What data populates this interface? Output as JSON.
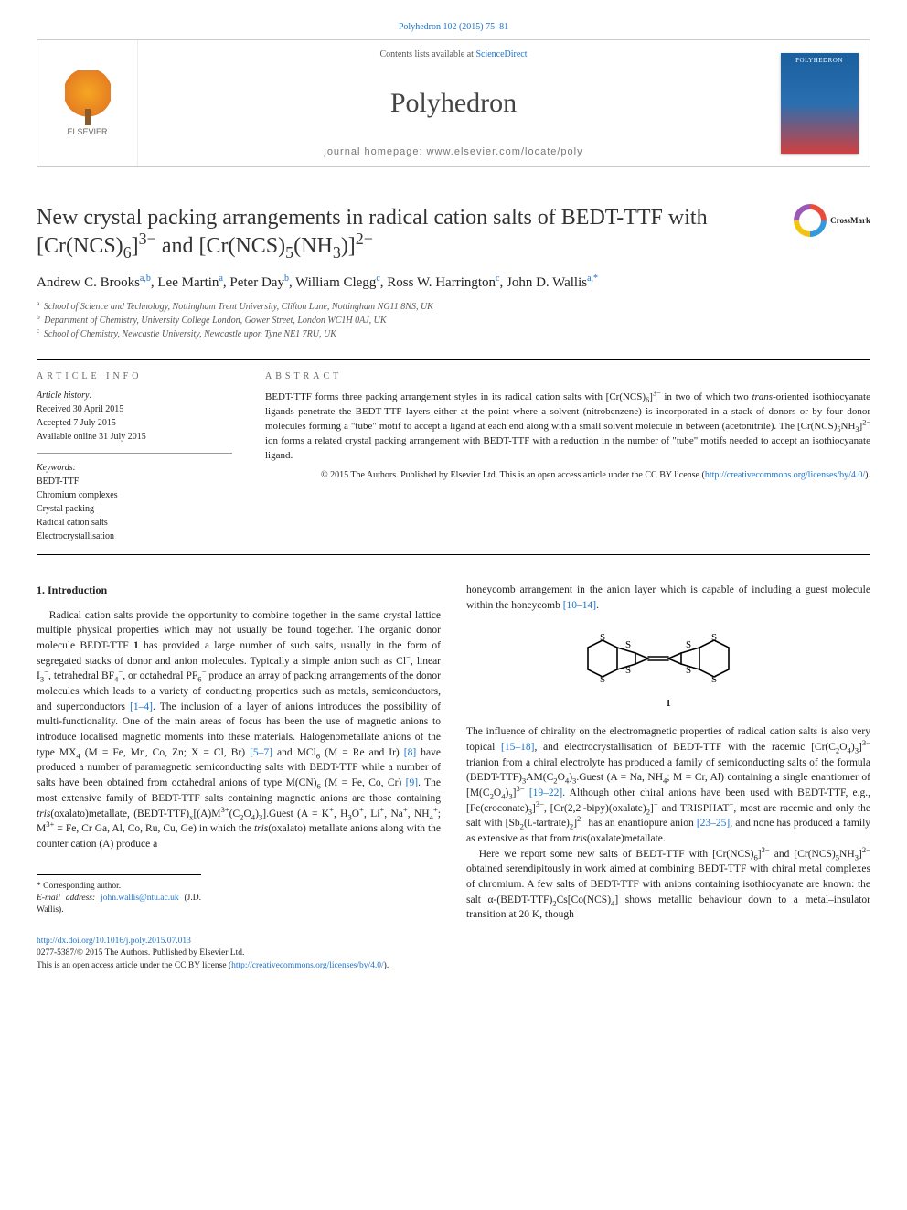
{
  "citation": "Polyhedron 102 (2015) 75–81",
  "header": {
    "contents_prefix": "Contents lists available at ",
    "contents_link": "ScienceDirect",
    "journal": "Polyhedron",
    "homepage_label": "journal homepage: www.elsevier.com/locate/poly",
    "publisher": "ELSEVIER"
  },
  "crossmark_label": "CrossMark",
  "title_html": "New crystal packing arrangements in radical cation salts of BEDT-TTF with [Cr(NCS)<sub>6</sub>]<sup>3−</sup> and [Cr(NCS)<sub>5</sub>(NH<sub>3</sub>)]<sup>2−</sup>",
  "authors_html": "Andrew C. Brooks<sup>a,b</sup>, Lee Martin<sup>a</sup>, Peter Day<sup>b</sup>, William Clegg<sup>c</sup>, Ross W. Harrington<sup>c</sup>, John D. Wallis<sup>a,*</sup>",
  "affiliations": [
    {
      "sup": "a",
      "text": "School of Science and Technology, Nottingham Trent University, Clifton Lane, Nottingham NG11 8NS, UK"
    },
    {
      "sup": "b",
      "text": "Department of Chemistry, University College London, Gower Street, London WC1H 0AJ, UK"
    },
    {
      "sup": "c",
      "text": "School of Chemistry, Newcastle University, Newcastle upon Tyne NE1 7RU, UK"
    }
  ],
  "info": {
    "heading": "ARTICLE INFO",
    "history_label": "Article history:",
    "history_lines": [
      "Received 30 April 2015",
      "Accepted 7 July 2015",
      "Available online 31 July 2015"
    ],
    "keywords_label": "Keywords:",
    "keywords": [
      "BEDT-TTF",
      "Chromium complexes",
      "Crystal packing",
      "Radical cation salts",
      "Electrocrystallisation"
    ]
  },
  "abstract": {
    "heading": "ABSTRACT",
    "text_html": "BEDT-TTF forms three packing arrangement styles in its radical cation salts with [Cr(NCS)<sub>6</sub>]<sup>3−</sup> in two of which two <i>trans</i>-oriented isothiocyanate ligands penetrate the BEDT-TTF layers either at the point where a solvent (nitrobenzene) is incorporated in a stack of donors or by four donor molecules forming a \"tube\" motif to accept a ligand at each end along with a small solvent molecule in between (acetonitrile). The [Cr(NCS)<sub>5</sub>NH<sub>3</sub>]<sup>2−</sup> ion forms a related crystal packing arrangement with BEDT-TTF with a reduction in the number of \"tube\" motifs needed to accept an isothiocyanate ligand.",
    "license_html": "© 2015 The Authors. Published by Elsevier Ltd. This is an open access article under the CC BY license (<a href='#'>http://creativecommons.org/licenses/by/4.0/</a>)."
  },
  "section1_heading": "1. Introduction",
  "col1_html": "Radical cation salts provide the opportunity to combine together in the same crystal lattice multiple physical properties which may not usually be found together. The organic donor molecule BEDT-TTF <b>1</b> has provided a large number of such salts, usually in the form of segregated stacks of donor and anion molecules. Typically a simple anion such as Cl<sup>−</sup>, linear I<sub>3</sub><sup>−</sup>, tetrahedral BF<sub>4</sub><sup>−</sup>, or octahedral PF<sub>6</sub><sup>−</sup> produce an array of packing arrangements of the donor molecules which leads to a variety of conducting properties such as metals, semiconductors, and superconductors <span class='cite'>[1–4]</span>. The inclusion of a layer of anions introduces the possibility of multi-functionality. One of the main areas of focus has been the use of magnetic anions to introduce localised magnetic moments into these materials. Halogenometallate anions of the type MX<sub>4</sub> (M = Fe, Mn, Co, Zn; X = Cl, Br) <span class='cite'>[5–7]</span> and MCl<sub>6</sub> (M = Re and Ir) <span class='cite'>[8]</span> have produced a number of paramagnetic semiconducting salts with BEDT-TTF while a number of salts have been obtained from octahedral anions of type M(CN)<sub>6</sub> (M = Fe, Co, Cr) <span class='cite'>[9]</span>. The most extensive family of BEDT-TTF salts containing magnetic anions are those containing <i>tris</i>(oxalato)metallate, (BEDT-TTF)<sub>x</sub>[(A)M<sup>3+</sup>(C<sub>2</sub>O<sub>4</sub>)<sub>3</sub>].Guest (A = K<sup>+</sup>, H<sub>3</sub>O<sup>+</sup>, Li<sup>+</sup>, Na<sup>+</sup>, NH<sub>4</sub><sup>+</sup>; M<sup>3+</sup> = Fe, Cr Ga, Al, Co, Ru, Cu, Ge) in which the <i>tris</i>(oxalato) metallate anions along with the counter cation (A) produce a",
  "col2_top_html": "honeycomb arrangement in the anion layer which is capable of including a guest molecule within the honeycomb <span class='cite'>[10–14]</span>.",
  "structure_label": "1",
  "col2_bottom_html": "The influence of chirality on the electromagnetic properties of radical cation salts is also very topical <span class='cite'>[15–18]</span>, and electrocrystallisation of BEDT-TTF with the racemic [Cr(C<sub>2</sub>O<sub>4</sub>)<sub>3</sub>]<sup>3−</sup> trianion from a chiral electrolyte has produced a family of semiconducting salts of the formula (BEDT-TTF)<sub>3</sub>AM(C<sub>2</sub>O<sub>4</sub>)<sub>3</sub>.Guest (A = Na, NH<sub>4</sub>; M = Cr, Al) containing a single enantiomer of [M(C<sub>2</sub>O<sub>4</sub>)<sub>3</sub>]<sup>3−</sup> <span class='cite'>[19–22]</span>. Although other chiral anions have been used with BEDT-TTF, e.g., [Fe(croconate)<sub>3</sub>]<sup>3−</sup>, [Cr(2,2′-bipy)(oxalate)<sub>2</sub>]<sup>−</sup> and TRISPHAT<sup>−</sup>, most are racemic and only the salt with [Sb<sub>2</sub>(<small>L</small>-tartrate)<sub>2</sub>]<sup>2−</sup> has an enantiopure anion <span class='cite'>[23–25]</span>, and none has produced a family as extensive as that from <i>tris</i>(oxalate)metallate.",
  "col2_para2_html": "Here we report some new salts of BEDT-TTF with [Cr(NCS)<sub>6</sub>]<sup>3−</sup> and [Cr(NCS)<sub>5</sub>NH<sub>3</sub>]<sup>2−</sup> obtained serendipitously in work aimed at combining BEDT-TTF with chiral metal complexes of chromium. A few salts of BEDT-TTF with anions containing isothiocyanate are known: the salt α-(BEDT-TTF)<sub>2</sub>Cs[Co(NCS)<sub>4</sub>] shows metallic behaviour down to a metal–insulator transition at 20 K, though",
  "corresponding": {
    "star_label": "* Corresponding author.",
    "email_label": "E-mail address: ",
    "email": "john.wallis@ntu.ac.uk",
    "email_author": " (J.D. Wallis)."
  },
  "footer": {
    "doi": "http://dx.doi.org/10.1016/j.poly.2015.07.013",
    "issn_line": "0277-5387/© 2015 The Authors. Published by Elsevier Ltd.",
    "license_line_html": "This is an open access article under the CC BY license (<a href='#'>http://creativecommons.org/licenses/by/4.0/</a>)."
  },
  "colors": {
    "link": "#1a73cc",
    "text": "#222222",
    "rule": "#000000"
  },
  "structure_svg": {
    "stroke": "#000000",
    "stroke_width": 1.6
  }
}
